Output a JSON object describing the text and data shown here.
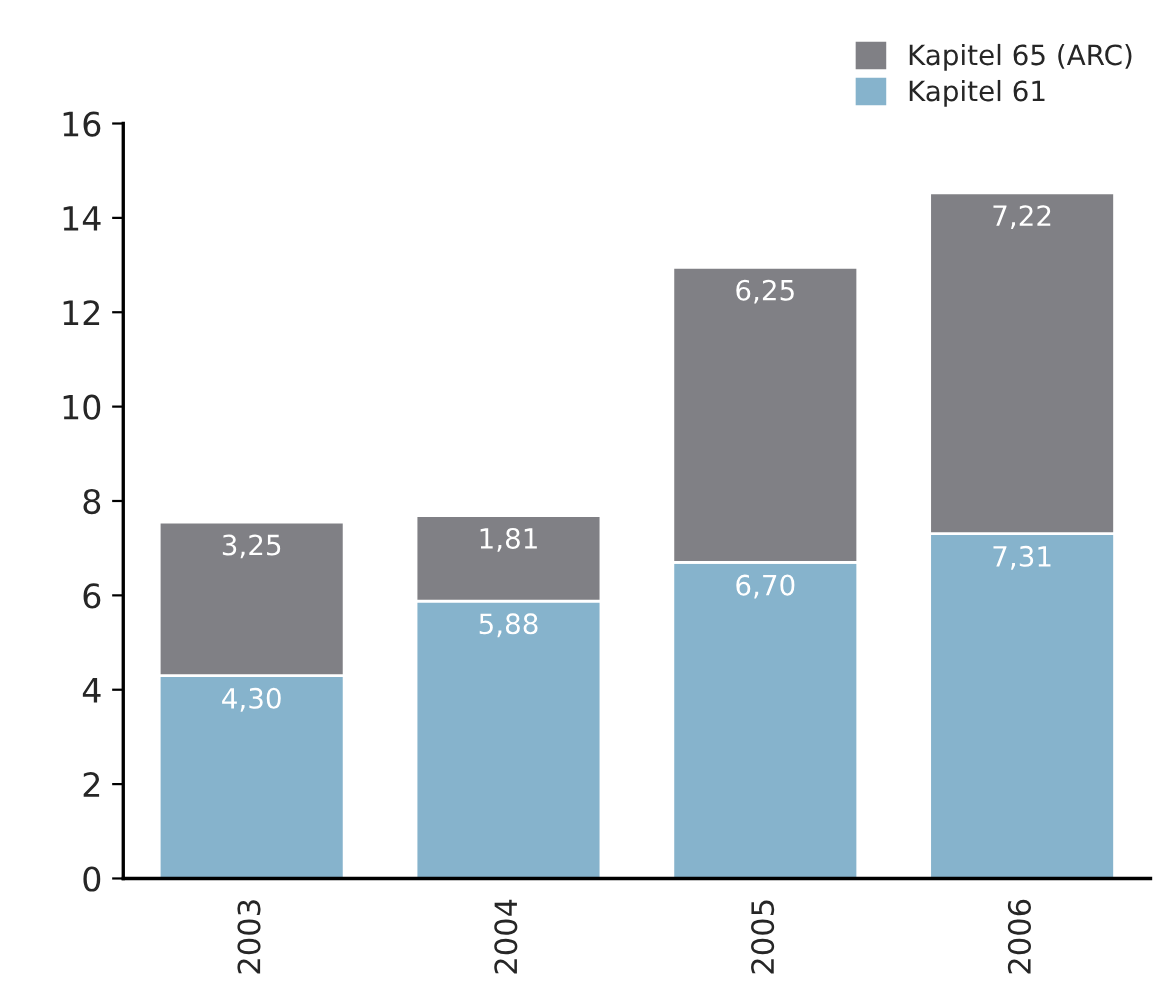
{
  "chart_data": {
    "type": "bar",
    "stacked": true,
    "categories": [
      "2003",
      "2004",
      "2005",
      "2006"
    ],
    "series": [
      {
        "name": "Kapitel 61",
        "color": "#86b3cc",
        "values": [
          4.3,
          5.88,
          6.7,
          7.31
        ],
        "value_labels": [
          "4,30",
          "5,88",
          "6,70",
          "7,31"
        ]
      },
      {
        "name": "Kapitel 65 (ARC)",
        "color": "#808085",
        "values": [
          3.25,
          1.81,
          6.25,
          7.22
        ],
        "value_labels": [
          "3,25",
          "1,81",
          "6,25",
          "7,22"
        ]
      }
    ],
    "ylim": [
      0,
      16
    ],
    "yticks": [
      0,
      2,
      4,
      6,
      8,
      10,
      12,
      14,
      16
    ],
    "grid": false,
    "legend": "top right"
  }
}
